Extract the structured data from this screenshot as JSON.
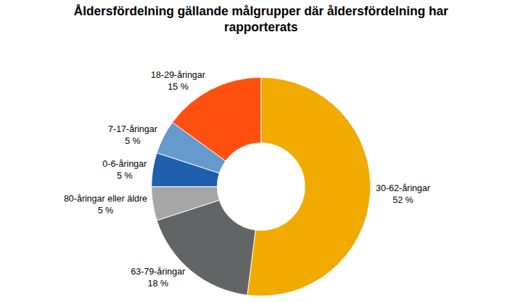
{
  "chart_data": {
    "type": "pie",
    "title": "Åldersfördelning gällande målgrupper där åldersfördelning har rapporterats",
    "categories": [
      "30-62-åringar",
      "63-79-åringar",
      "80-åringar eller äldre",
      "0-6-åringar",
      "7-17-åringar",
      "18-29-åringar"
    ],
    "values": [
      52,
      18,
      5,
      5,
      5,
      15
    ],
    "value_labels": [
      "52 %",
      "18 %",
      "5 %",
      "5 %",
      "5 %",
      "15 %"
    ],
    "colors": [
      "#f0aa00",
      "#636466",
      "#a6a6a6",
      "#1f5fad",
      "#6699cc",
      "#ff5010"
    ],
    "data_labels": true
  }
}
